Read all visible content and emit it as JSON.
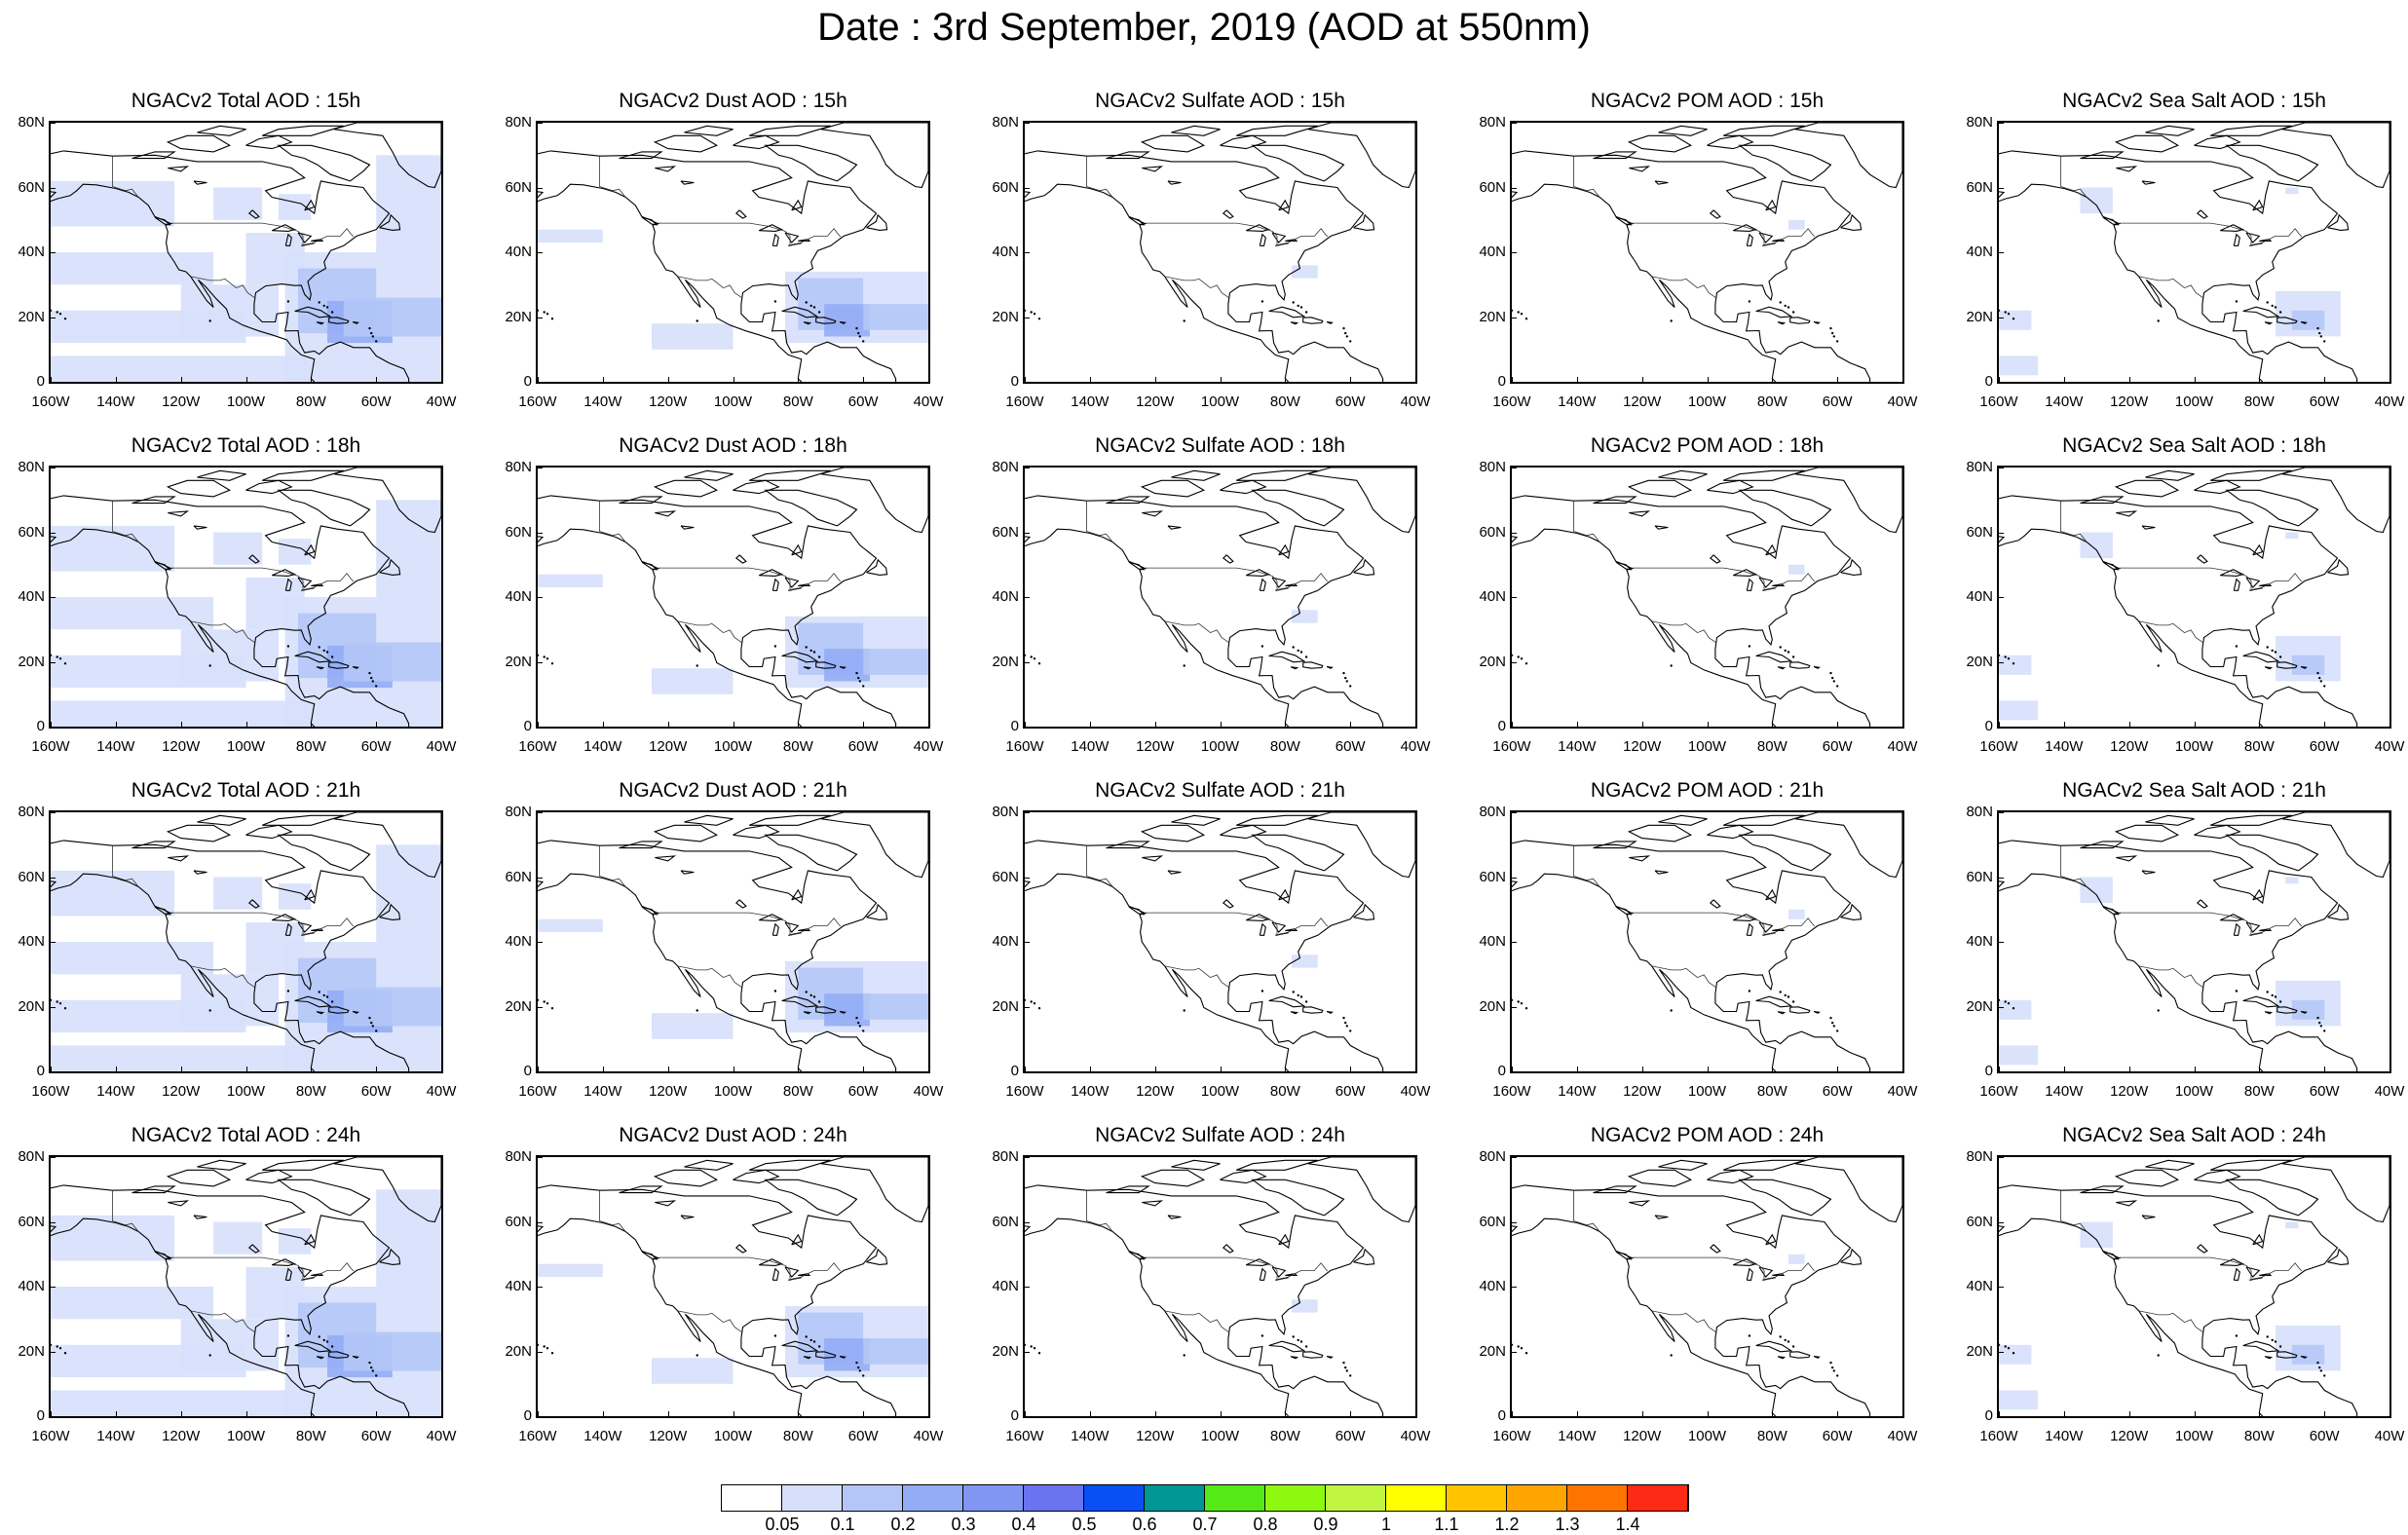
{
  "title": "Date : 3rd September, 2019 (AOD at 550nm)",
  "rows": [
    [
      "NGACv2 Total AOD : 15h",
      "NGACv2 Dust AOD : 15h",
      "NGACv2 Sulfate AOD : 15h",
      "NGACv2 POM AOD : 15h",
      "NGACv2 Sea Salt AOD : 15h"
    ],
    [
      "NGACv2 Total AOD : 18h",
      "NGACv2 Dust AOD : 18h",
      "NGACv2 Sulfate AOD : 18h",
      "NGACv2 POM AOD : 18h",
      "NGACv2 Sea Salt AOD : 18h"
    ],
    [
      "NGACv2 Total AOD : 21h",
      "NGACv2 Dust AOD : 21h",
      "NGACv2 Sulfate AOD : 21h",
      "NGACv2 POM AOD : 21h",
      "NGACv2 Sea Salt AOD : 21h"
    ],
    [
      "NGACv2 Total AOD : 24h",
      "NGACv2 Dust AOD : 24h",
      "NGACv2 Sulfate AOD : 24h",
      "NGACv2 POM AOD : 24h",
      "NGACv2 Sea Salt  AOD : 24h"
    ]
  ],
  "species": [
    "total",
    "dust",
    "sulfate",
    "pom",
    "seasalt"
  ],
  "lat_ticks": [
    "80N",
    "60N",
    "40N",
    "20N",
    "0"
  ],
  "lon_ticks": [
    "160W",
    "140W",
    "120W",
    "100W",
    "80W",
    "60W",
    "40W"
  ],
  "colorbar": {
    "colors": [
      "#ffffff",
      "#d6e0fb",
      "#b4c6f7",
      "#94acf5",
      "#8096f2",
      "#6a74f0",
      "#0a4ff5",
      "#009696",
      "#55ea17",
      "#8ef90e",
      "#c1f542",
      "#ffff00",
      "#ffc300",
      "#ffa500",
      "#ff7300",
      "#ff2a16"
    ],
    "labels": [
      "0.05",
      "0.1",
      "0.2",
      "0.3",
      "0.4",
      "0.5",
      "0.6",
      "0.7",
      "0.8",
      "0.9",
      "1",
      "1.1",
      "1.2",
      "1.3",
      "1.4"
    ]
  }
}
